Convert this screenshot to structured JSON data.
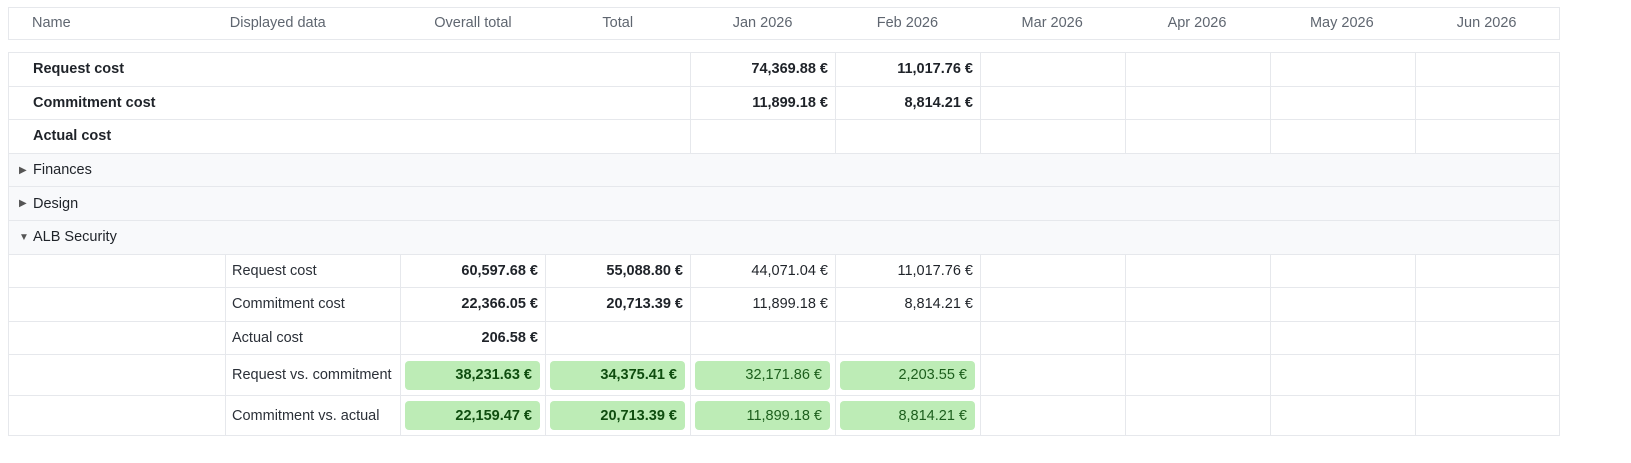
{
  "columns": [
    "Name",
    "Displayed data",
    "Overall total",
    "Total",
    "Jan 2026",
    "Feb 2026",
    "Mar 2026",
    "Apr 2026",
    "May 2026",
    "Jun 2026"
  ],
  "summary": [
    {
      "label": "Request cost",
      "jan": "74,369.88 €",
      "feb": "11,017.76 €"
    },
    {
      "label": "Commitment cost",
      "jan": "11,899.18 €",
      "feb": "8,814.21 €"
    },
    {
      "label": "Actual cost",
      "jan": "",
      "feb": ""
    }
  ],
  "groups": [
    {
      "name": "Finances",
      "expanded": false,
      "icon": "triangle-right-icon"
    },
    {
      "name": "Design",
      "expanded": false,
      "icon": "triangle-right-icon"
    },
    {
      "name": "ALB Security",
      "expanded": true,
      "icon": "triangle-down-icon"
    }
  ],
  "detail": [
    {
      "label": "Request cost",
      "overall": "60,597.68 €",
      "total": "55,088.80 €",
      "jan": "44,071.04 €",
      "feb": "11,017.76 €"
    },
    {
      "label": "Commitment cost",
      "overall": "22,366.05 €",
      "total": "20,713.39 €",
      "jan": "11,899.18 €",
      "feb": "8,814.21 €"
    },
    {
      "label": "Actual cost",
      "overall": "206.58 €",
      "total": "",
      "jan": "",
      "feb": ""
    },
    {
      "label": "Request vs. commitment",
      "overall": "38,231.63 €",
      "total": "34,375.41 €",
      "jan": "32,171.86 €",
      "feb": "2,203.55 €"
    },
    {
      "label": "Commitment vs. actual",
      "overall": "22,159.47 €",
      "total": "20,713.39 €",
      "jan": "11,899.18 €",
      "feb": "8,814.21 €"
    }
  ],
  "colors": {
    "positive_bg": "#bdecb6",
    "positive_text": "#1c5e1c",
    "group_bg": "#f8f9fb"
  }
}
